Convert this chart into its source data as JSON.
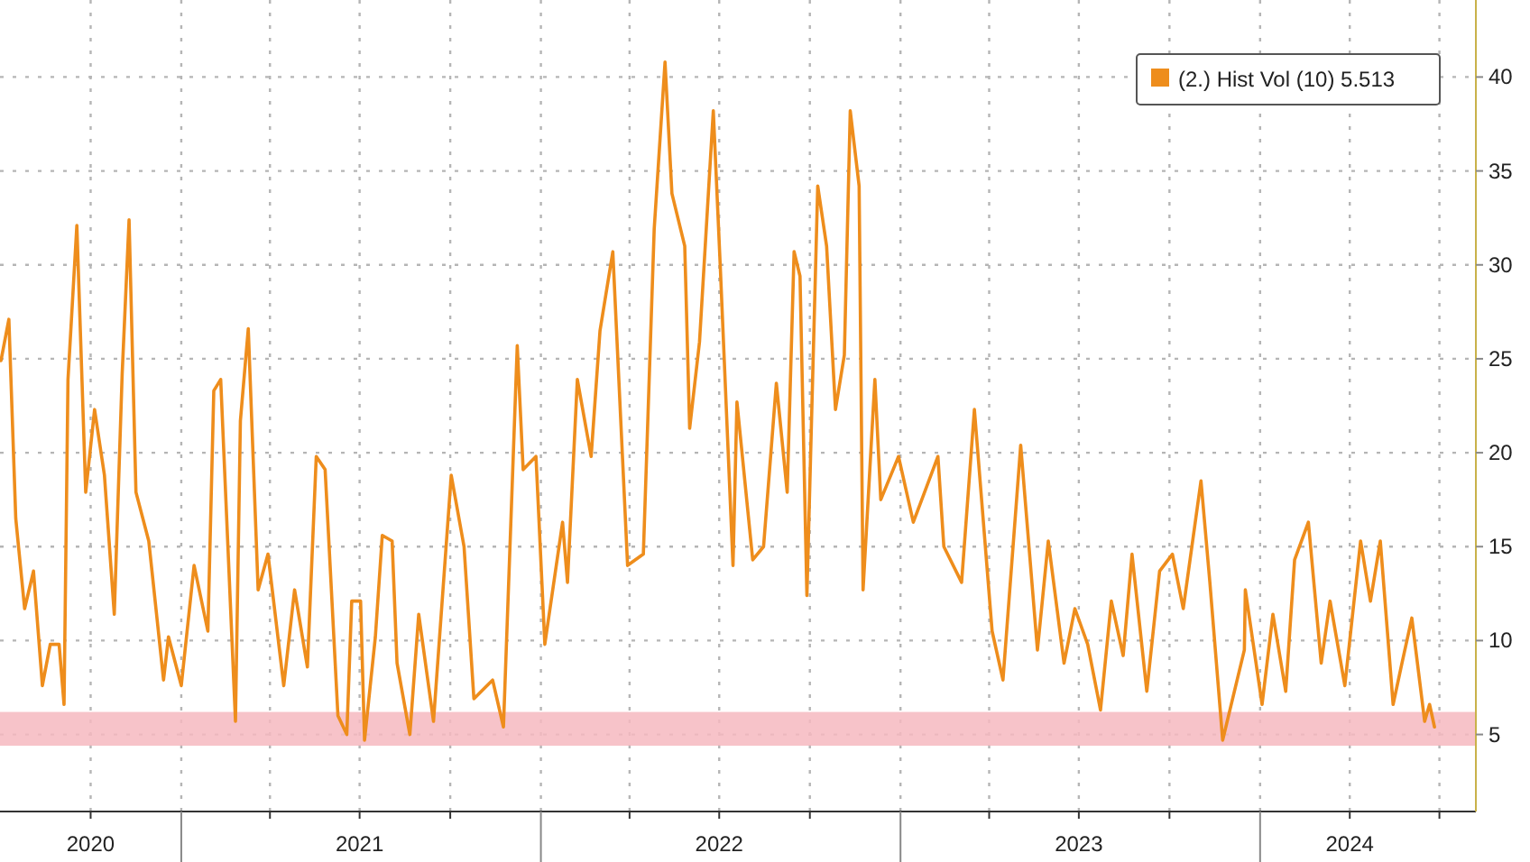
{
  "chart_data": {
    "type": "line",
    "legend": "top right",
    "grid": true,
    "xlim": [
      "2020-07-01",
      "2024-08-07"
    ],
    "ylim": [
      0.9,
      44.1
    ],
    "yticks": [
      5,
      10,
      15,
      20,
      25,
      30,
      35,
      40
    ],
    "xticks": [
      {
        "value": "2020-10-01",
        "label": "2020"
      },
      {
        "value": "2021-01-01",
        "label": null
      },
      {
        "value": "2021-04-01",
        "label": null
      },
      {
        "value": "2021-07-01",
        "label": "2021"
      },
      {
        "value": "2021-10-01",
        "label": null
      },
      {
        "value": "2022-01-01",
        "label": null
      },
      {
        "value": "2022-04-01",
        "label": null
      },
      {
        "value": "2022-07-01",
        "label": "2022"
      },
      {
        "value": "2022-10-01",
        "label": null
      },
      {
        "value": "2023-01-01",
        "label": null
      },
      {
        "value": "2023-04-01",
        "label": null
      },
      {
        "value": "2023-07-01",
        "label": "2023"
      },
      {
        "value": "2023-10-01",
        "label": null
      },
      {
        "value": "2024-01-01",
        "label": null
      },
      {
        "value": "2024-04-01",
        "label": "2024"
      },
      {
        "value": "2024-07-01",
        "label": null
      }
    ],
    "bands": [
      {
        "axis": "y",
        "from": 4.4,
        "to": 6.2,
        "color": "#f6b9c0"
      }
    ],
    "series": [
      {
        "name": "(2.) Hist Vol (10) 5.513",
        "color": "#ee8d1c",
        "x": [
          "2020-07-02",
          "2020-07-10",
          "2020-07-17",
          "2020-07-26",
          "2020-08-04",
          "2020-08-13",
          "2020-08-21",
          "2020-08-30",
          "2020-09-04",
          "2020-09-08",
          "2020-09-17",
          "2020-09-26",
          "2020-10-05",
          "2020-10-15",
          "2020-10-25",
          "2020-11-02",
          "2020-11-09",
          "2020-11-16",
          "2020-11-29",
          "2020-12-14",
          "2020-12-19",
          "2021-01-01",
          "2021-01-14",
          "2021-01-28",
          "2021-02-03",
          "2021-02-10",
          "2021-02-25",
          "2021-03-02",
          "2021-03-10",
          "2021-03-20",
          "2021-03-30",
          "2021-04-15",
          "2021-04-26",
          "2021-05-09",
          "2021-05-18",
          "2021-05-27",
          "2021-06-09",
          "2021-06-18",
          "2021-06-23",
          "2021-07-02",
          "2021-07-06",
          "2021-07-17",
          "2021-07-24",
          "2021-08-03",
          "2021-08-08",
          "2021-08-21",
          "2021-08-30",
          "2021-09-14",
          "2021-10-02",
          "2021-10-15",
          "2021-10-25",
          "2021-11-13",
          "2021-11-24",
          "2021-12-08",
          "2021-12-14",
          "2021-12-27",
          "2022-01-05",
          "2022-01-23",
          "2022-01-28",
          "2022-02-07",
          "2022-02-21",
          "2022-03-02",
          "2022-03-15",
          "2022-03-30",
          "2022-04-15",
          "2022-04-26",
          "2022-05-07",
          "2022-05-14",
          "2022-05-27",
          "2022-06-01",
          "2022-06-11",
          "2022-06-25",
          "2022-07-02",
          "2022-07-15",
          "2022-07-19",
          "2022-08-04",
          "2022-08-15",
          "2022-08-28",
          "2022-09-08",
          "2022-09-15",
          "2022-09-21",
          "2022-09-28",
          "2022-10-09",
          "2022-10-18",
          "2022-10-27",
          "2022-11-05",
          "2022-11-11",
          "2022-11-20",
          "2022-11-24",
          "2022-12-06",
          "2022-12-12",
          "2022-12-30",
          "2023-01-14",
          "2023-02-08",
          "2023-02-14",
          "2023-03-04",
          "2023-03-17",
          "2023-04-04",
          "2023-04-15",
          "2023-05-03",
          "2023-05-20",
          "2023-05-31",
          "2023-06-16",
          "2023-06-27",
          "2023-07-10",
          "2023-07-23",
          "2023-08-03",
          "2023-08-15",
          "2023-08-24",
          "2023-09-08",
          "2023-09-21",
          "2023-10-04",
          "2023-10-15",
          "2023-11-02",
          "2023-11-11",
          "2023-11-24",
          "2023-12-16",
          "2023-12-17",
          "2024-01-03",
          "2024-01-14",
          "2024-01-27",
          "2024-02-05",
          "2024-02-19",
          "2024-03-03",
          "2024-03-12",
          "2024-03-27",
          "2024-04-12",
          "2024-04-22",
          "2024-05-02",
          "2024-05-15",
          "2024-05-24",
          "2024-06-03",
          "2024-06-16",
          "2024-06-21",
          "2024-06-26"
        ],
        "values": [
          24.9,
          27.1,
          16.5,
          11.7,
          13.7,
          7.6,
          9.8,
          9.8,
          6.6,
          23.9,
          32.1,
          17.9,
          22.3,
          18.8,
          11.4,
          24.2,
          32.4,
          17.9,
          15.3,
          7.9,
          10.2,
          7.6,
          14.0,
          10.5,
          23.3,
          23.9,
          5.7,
          21.7,
          26.6,
          12.7,
          14.6,
          7.6,
          12.7,
          8.6,
          19.8,
          19.1,
          6.0,
          5.0,
          12.1,
          12.1,
          4.7,
          10.2,
          15.6,
          15.3,
          8.8,
          5.0,
          11.4,
          5.7,
          18.8,
          15.0,
          6.9,
          7.9,
          5.4,
          25.7,
          19.1,
          19.8,
          9.8,
          16.3,
          13.1,
          23.9,
          19.8,
          26.5,
          30.7,
          14.0,
          14.6,
          31.9,
          40.8,
          33.8,
          31.0,
          21.3,
          25.9,
          38.2,
          30.0,
          14.0,
          22.7,
          14.3,
          15.0,
          23.7,
          17.9,
          30.7,
          29.4,
          12.4,
          34.2,
          31.0,
          22.3,
          25.2,
          38.2,
          34.2,
          12.7,
          23.9,
          17.5,
          19.8,
          16.3,
          19.8,
          15.0,
          13.1,
          22.3,
          10.5,
          7.9,
          20.4,
          9.5,
          15.3,
          8.8,
          11.7,
          9.8,
          6.3,
          12.1,
          9.2,
          14.6,
          7.3,
          13.7,
          14.6,
          11.7,
          18.5,
          13.1,
          4.7,
          9.5,
          12.7,
          6.6,
          11.4,
          7.3,
          14.3,
          16.3,
          8.8,
          12.1,
          7.6,
          15.3,
          12.1,
          15.3,
          6.6,
          8.8,
          11.2,
          5.7,
          6.6,
          5.4
        ]
      }
    ]
  }
}
